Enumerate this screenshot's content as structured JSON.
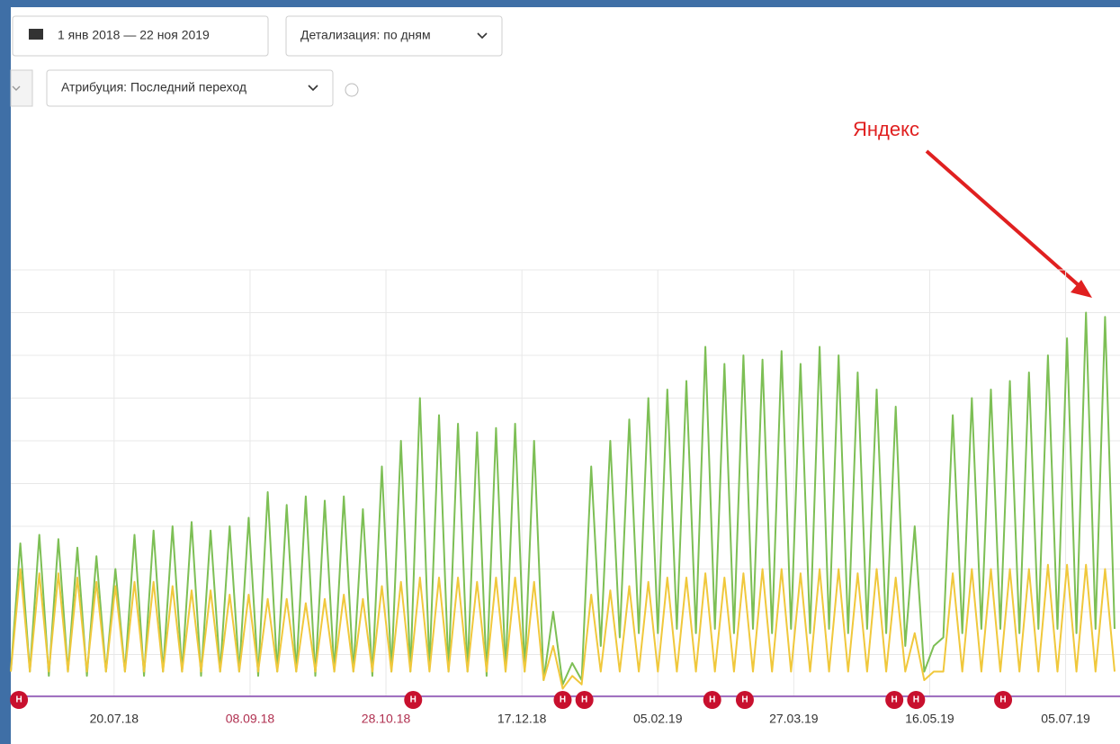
{
  "toolbar": {
    "date_range": "1 янв 2018 — 22 ноя 2019",
    "detail": "Детализация: по дням",
    "attribution": "Атрибуция: Последний переход"
  },
  "annotation": {
    "text": "Яндекс",
    "color": "#e02020"
  },
  "chart_data": {
    "type": "line",
    "grid": true,
    "xlim": [
      0,
      408
    ],
    "xticks": [
      {
        "value": 38,
        "label": "20.07.18",
        "color": "#333333"
      },
      {
        "value": 88,
        "label": "08.09.18",
        "color": "#b03050"
      },
      {
        "value": 138,
        "label": "28.10.18",
        "color": "#b03050"
      },
      {
        "value": 188,
        "label": "17.12.18",
        "color": "#333333"
      },
      {
        "value": 238,
        "label": "05.02.19",
        "color": "#333333"
      },
      {
        "value": 288,
        "label": "27.03.19",
        "color": "#333333"
      },
      {
        "value": 338,
        "label": "16.05.19",
        "color": "#333333"
      },
      {
        "value": 388,
        "label": "05.07.19",
        "color": "#333333"
      }
    ],
    "ylim": [
      0,
      100
    ],
    "yticks": [
      0,
      10,
      20,
      30,
      40,
      50,
      60,
      70,
      80,
      90,
      100
    ],
    "x": [
      0,
      3.5,
      7,
      10.5,
      14,
      17.5,
      21,
      24.5,
      28,
      31.5,
      35,
      38.5,
      42,
      45.5,
      49,
      52.5,
      56,
      59.5,
      63,
      66.5,
      70,
      73.5,
      77,
      80.5,
      84,
      87.5,
      91,
      94.5,
      98,
      101.5,
      105,
      108.5,
      112,
      115.5,
      119,
      122.5,
      126,
      129.5,
      133,
      136.5,
      140,
      143.5,
      147,
      150.5,
      154,
      157.5,
      161,
      164.5,
      168,
      171.5,
      175,
      178.5,
      182,
      185.5,
      189,
      192.5,
      196,
      199.5,
      203,
      206.5,
      210,
      213.5,
      217,
      220.5,
      224,
      227.5,
      231,
      234.5,
      238,
      241.5,
      245,
      248.5,
      252,
      255.5,
      259,
      262.5,
      266,
      269.5,
      273,
      276.5,
      280,
      283.5,
      287,
      290.5,
      294,
      297.5,
      301,
      304.5,
      308,
      311.5,
      315,
      318.5,
      322,
      325.5,
      329,
      332.5,
      336,
      339.5,
      343,
      346.5,
      350,
      353.5,
      357,
      360.5,
      364,
      367.5,
      371,
      374.5,
      378,
      381.5,
      385,
      388.5,
      392,
      395.5,
      399,
      402.5,
      406
    ],
    "series": [
      {
        "color": "#7dbf55",
        "values": [
          6,
          36,
          6,
          38,
          5,
          37,
          6,
          35,
          5,
          33,
          6,
          30,
          6,
          38,
          5,
          39,
          6,
          40,
          6,
          41,
          5,
          39,
          6,
          40,
          6,
          42,
          5,
          48,
          6,
          45,
          6,
          47,
          5,
          46,
          6,
          47,
          6,
          44,
          5,
          54,
          6,
          60,
          6,
          70,
          7,
          66,
          6,
          64,
          6,
          62,
          5,
          63,
          6,
          64,
          6,
          60,
          4,
          20,
          3,
          8,
          4,
          54,
          12,
          60,
          14,
          65,
          15,
          70,
          15,
          72,
          16,
          74,
          15,
          82,
          16,
          78,
          15,
          80,
          16,
          79,
          15,
          81,
          16,
          78,
          15,
          82,
          16,
          80,
          15,
          76,
          16,
          72,
          15,
          68,
          12,
          40,
          6,
          12,
          14,
          66,
          15,
          70,
          16,
          72,
          16,
          74,
          15,
          76,
          16,
          80,
          16,
          84,
          15,
          90,
          16,
          89,
          16
        ]
      },
      {
        "color": "#f0c83c",
        "values": [
          6,
          30,
          6,
          29,
          6,
          29,
          6,
          28,
          6,
          27,
          6,
          26,
          6,
          27,
          6,
          27,
          6,
          26,
          6,
          25,
          6,
          25,
          6,
          24,
          6,
          24,
          6,
          23,
          6,
          23,
          6,
          22,
          6,
          23,
          6,
          24,
          6,
          23,
          6,
          26,
          6,
          27,
          6,
          28,
          6,
          28,
          6,
          28,
          6,
          27,
          6,
          28,
          6,
          28,
          6,
          27,
          4,
          12,
          2,
          5,
          3,
          24,
          6,
          25,
          6,
          26,
          6,
          27,
          6,
          28,
          6,
          28,
          6,
          29,
          6,
          28,
          6,
          29,
          6,
          30,
          6,
          30,
          6,
          29,
          6,
          30,
          6,
          30,
          6,
          29,
          6,
          30,
          6,
          28,
          6,
          15,
          4,
          6,
          6,
          29,
          6,
          30,
          6,
          30,
          6,
          30,
          6,
          30,
          6,
          31,
          6,
          31,
          6,
          31,
          6,
          30,
          6
        ]
      }
    ],
    "markers": [
      {
        "x": 3,
        "label": "Н"
      },
      {
        "x": 148,
        "label": "Н"
      },
      {
        "x": 203,
        "label": "Н"
      },
      {
        "x": 211,
        "label": "Н"
      },
      {
        "x": 258,
        "label": "Н"
      },
      {
        "x": 270,
        "label": "Н"
      },
      {
        "x": 325,
        "label": "Н"
      },
      {
        "x": 333,
        "label": "Н"
      },
      {
        "x": 365,
        "label": "Н"
      }
    ],
    "marker_color": "#c8102e"
  }
}
